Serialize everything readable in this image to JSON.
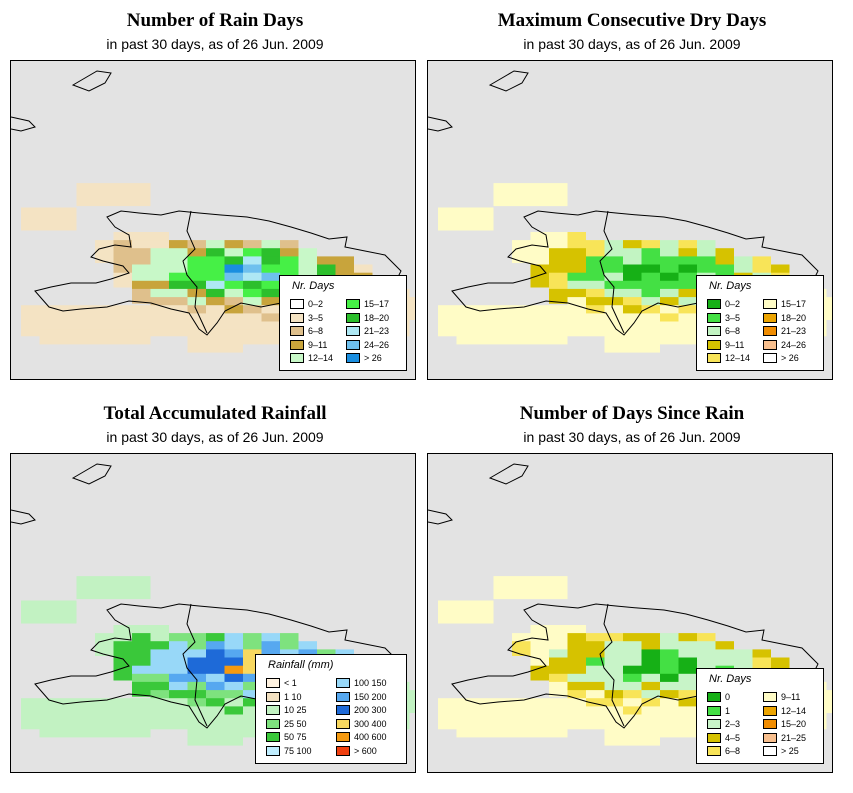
{
  "panels": [
    {
      "title": "Number of Rain Days",
      "subtitle": "in past 30 days, as of  26 Jun. 2009",
      "legend_title": "Nr. Days",
      "legend": [
        {
          "label": "0–2",
          "color": "#ffffff"
        },
        {
          "label": "3–5",
          "color": "#f4e3c3"
        },
        {
          "label": "6–8",
          "color": "#dfc08c"
        },
        {
          "label": "9–11",
          "color": "#c8a43c"
        },
        {
          "label": "12–14",
          "color": "#c8f8c8"
        },
        {
          "label": "15–17",
          "color": "#46f046"
        },
        {
          "label": "18–20",
          "color": "#2cbf2c"
        },
        {
          "label": "21–23",
          "color": "#aee8f4"
        },
        {
          "label": "24–26",
          "color": "#6ec0ee"
        },
        {
          "label": "> 26",
          "color": "#1a8ee0"
        }
      ]
    },
    {
      "title": "Maximum Consecutive Dry Days",
      "subtitle": "in past 30 days, as of  26 Jun. 2009",
      "legend_title": "Nr. Days",
      "legend": [
        {
          "label": "0–2",
          "color": "#16b016"
        },
        {
          "label": "3–5",
          "color": "#44e044"
        },
        {
          "label": "6–8",
          "color": "#c2f4c2"
        },
        {
          "label": "9–11",
          "color": "#d6c200"
        },
        {
          "label": "12–14",
          "color": "#f8e458"
        },
        {
          "label": "15–17",
          "color": "#fffcc6"
        },
        {
          "label": "18–20",
          "color": "#eca400"
        },
        {
          "label": "21–23",
          "color": "#f08c00"
        },
        {
          "label": "24–26",
          "color": "#f8bf8e"
        },
        {
          "label": "> 26",
          "color": "#ffffff"
        }
      ]
    },
    {
      "title": "Total Accumulated Rainfall",
      "subtitle": "in past 30 days, as of  26 Jun. 2009",
      "legend_title": "Rainfall (mm)",
      "legend": [
        {
          "label": "<  1",
          "color": "#fff2e0"
        },
        {
          "label": "1   10",
          "color": "#f2e0c0"
        },
        {
          "label": "10   25",
          "color": "#c2f2c2"
        },
        {
          "label": "25   50",
          "color": "#7ee27e"
        },
        {
          "label": "50   75",
          "color": "#3ac83a"
        },
        {
          "label": "75  100",
          "color": "#c0eeff"
        },
        {
          "label": "100  150",
          "color": "#98d8f8"
        },
        {
          "label": "150  200",
          "color": "#56a8f0"
        },
        {
          "label": "200  300",
          "color": "#1e6ad8"
        },
        {
          "label": "300  400",
          "color": "#f8d860"
        },
        {
          "label": "400  600",
          "color": "#f59a10"
        },
        {
          "label": "> 600",
          "color": "#f04010"
        }
      ]
    },
    {
      "title": "Number of Days Since Rain",
      "subtitle": "in past 30 days, as of  26 Jun. 2009",
      "legend_title": "Nr. Days",
      "legend": [
        {
          "label": "0",
          "color": "#16b016"
        },
        {
          "label": "1",
          "color": "#44e044"
        },
        {
          "label": "2–3",
          "color": "#c8f4c8"
        },
        {
          "label": "4–5",
          "color": "#d6c200"
        },
        {
          "label": "6–8",
          "color": "#f8e458"
        },
        {
          "label": "9–11",
          "color": "#fffcc6"
        },
        {
          "label": "12–14",
          "color": "#eca400"
        },
        {
          "label": "15–20",
          "color": "#f08c00"
        },
        {
          "label": "21–25",
          "color": "#f8bf8e"
        },
        {
          "label": "> 25",
          "color": "#ffffff"
        }
      ]
    }
  ]
}
